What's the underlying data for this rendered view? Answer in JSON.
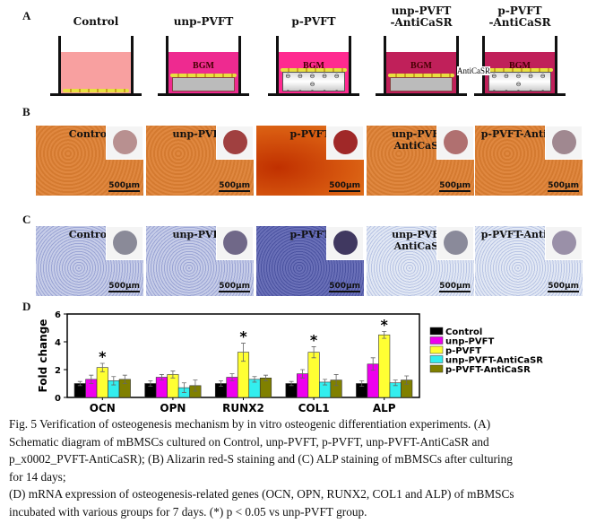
{
  "panelA": {
    "label": "A",
    "groups": [
      {
        "title": "Control",
        "medium": ""
      },
      {
        "title": "unp-PVFT",
        "medium": "BGM"
      },
      {
        "title": "p-PVFT",
        "medium": "BGM"
      },
      {
        "title": "unp-PVFT\n-AntiCaSR",
        "medium": "BGM"
      },
      {
        "title": "p-PVFT\n-AntiCaSR",
        "medium": "BGM"
      }
    ],
    "anti_label": "AntiCaSR",
    "minus": "⊖ ⊖ ⊖ ⊖ ⊖ ⊖",
    "plus": "⊕ ⊕ ⊕ ⊕ ⊕ ⊕"
  },
  "panelB": {
    "label": "B",
    "titles": [
      "Control",
      "unp-PVFT",
      "p-PVFT",
      "unp-PVFT-AntiCaSR",
      "p-PVFT-AntiCaSR"
    ],
    "scale": "500μm"
  },
  "panelC": {
    "label": "C",
    "titles": [
      "Control",
      "unp-PVFT",
      "p-PVFT",
      "unp-PVFT-AntiCaSR",
      "p-PVFT-AntiCaSR"
    ],
    "scale": "500μm"
  },
  "chart_data": {
    "type": "bar",
    "label": "D",
    "ylabel": "Fold change",
    "ylim": [
      0,
      6
    ],
    "yticks": [
      "0",
      "2",
      "4",
      "6"
    ],
    "categories": [
      "OCN",
      "OPN",
      "RUNX2",
      "COL1",
      "ALP"
    ],
    "series": [
      {
        "name": "Control",
        "color": "#000000",
        "values": [
          1,
          1,
          1,
          1,
          1
        ],
        "err": [
          0.15,
          0.2,
          0.2,
          0.15,
          0.2
        ]
      },
      {
        "name": "unp-PVFT",
        "color": "#ee00ee",
        "values": [
          1.3,
          1.45,
          1.45,
          1.7,
          2.4
        ],
        "err": [
          0.3,
          0.2,
          0.25,
          0.3,
          0.45
        ]
      },
      {
        "name": "p-PVFT",
        "color": "#ffff33",
        "values": [
          2.15,
          1.65,
          3.25,
          3.25,
          4.5
        ],
        "err": [
          0.3,
          0.25,
          0.65,
          0.4,
          0.25
        ]
      },
      {
        "name": "unp-PVFT-AntiCaSR",
        "color": "#33eeee",
        "values": [
          1.2,
          0.7,
          1.3,
          1.1,
          1.05
        ],
        "err": [
          0.3,
          0.35,
          0.2,
          0.2,
          0.2
        ]
      },
      {
        "name": "p-PVFT-AntiCaSR",
        "color": "#808000",
        "values": [
          1.3,
          0.85,
          1.4,
          1.25,
          1.25
        ],
        "err": [
          0.3,
          0.4,
          0.2,
          0.4,
          0.3
        ]
      }
    ],
    "significance": {
      "marker": "*",
      "series": "p-PVFT",
      "categories": [
        "OCN",
        "RUNX2",
        "COL1",
        "ALP"
      ]
    }
  },
  "caption": [
    "Fig. 5 Verification of osteogenesis mechanism by in vitro osteogenic differentiation experiments. (A)",
    "Schematic diagram of mBMSCs cultured on Control, unp-PVFT, p-PVFT, unp-PVFT-AntiCaSR and",
    "p_x0002_PVFT-AntiCaSR); (B) Alizarin red-S staining and (C) ALP staining of mBMSCs after culturing",
    "for 14 days;",
    "(D) mRNA expression of osteogenesis-related genes (OCN, OPN, RUNX2, COL1 and ALP) of mBMSCs",
    "incubated with various groups for 7 days. (*) p < 0.05 vs unp-PVFT group."
  ]
}
